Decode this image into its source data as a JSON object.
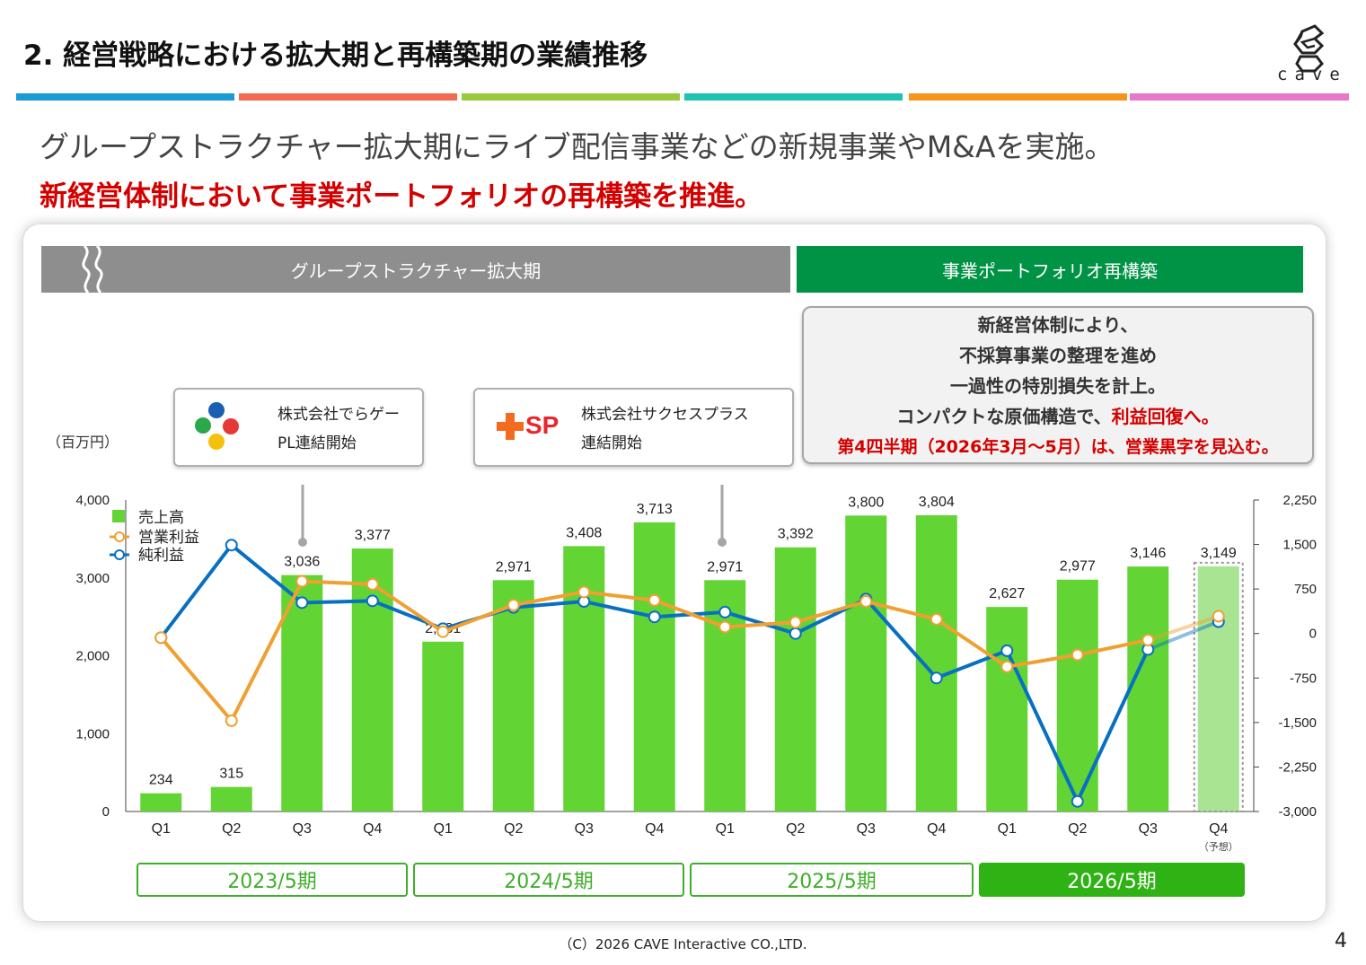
{
  "header": {
    "title": "2.  経営戦略における拡大期と再構築期の業績推移",
    "logo_text": "cave",
    "stripe_colors": [
      "#1a9ad6",
      "#f26b50",
      "#9ac93d",
      "#1fc3b0",
      "#f7941d",
      "#e679c8"
    ]
  },
  "subtitle": "グループストラクチャー拡大期にライブ配信事業などの新規事業やM&Aを実施。",
  "headline": "新経営体制において事業ポートフォリオの再構築を推進。",
  "banners": {
    "expansion": "グループストラクチャー拡大期",
    "rebuild": "事業ポートフォリオ再構築"
  },
  "note": {
    "lines": [
      "新経営体制により、",
      "不採算事業の整理を進め",
      "一過性の特別損失を計上。"
    ],
    "line4_prefix": "コンパクトな原価構造で、",
    "line4_red": "利益回復へ。",
    "line5": "第4四半期（2026年3月〜5月）は、営業黒字を見込む。"
  },
  "callouts": [
    {
      "line1": "株式会社でらゲー",
      "line2": "PL連結開始"
    },
    {
      "line1": "株式会社サクセスプラス",
      "line2": "連結開始",
      "logo_text": "SP"
    }
  ],
  "unit_label": "（百万円）",
  "periods": [
    "2023/5期",
    "2024/5期",
    "2025/5期",
    "2026/5期"
  ],
  "footer": {
    "copyright": "（C）2026 CAVE Interactive CO.,LTD.",
    "page_number": "4"
  },
  "colors": {
    "sales": "#62d535",
    "sales_forecast": "#a8e492",
    "operating_profit": "#f0a030",
    "net_profit": "#0870c2",
    "green_banner": "#009245",
    "red_text": "#d40000"
  },
  "chart_data": {
    "type": "bar",
    "categories": [
      "Q1",
      "Q2",
      "Q3",
      "Q4",
      "Q1",
      "Q2",
      "Q3",
      "Q4",
      "Q1",
      "Q2",
      "Q3",
      "Q4",
      "Q1",
      "Q2",
      "Q3",
      "Q4"
    ],
    "forecast_note": "（予想）",
    "forecast_index": 15,
    "left_axis": {
      "ylim": [
        0,
        4000
      ],
      "ticks": [
        "0",
        "1,000",
        "2,000",
        "3,000",
        "4,000"
      ]
    },
    "right_axis": {
      "ylim": [
        -3000,
        2250
      ],
      "ticks": [
        "2,250",
        "1,500",
        "750",
        "0",
        "-750",
        "-1,500",
        "-2,250",
        "-3,000"
      ]
    },
    "legend": [
      "売上高",
      "営業利益",
      "純利益"
    ],
    "series": [
      {
        "name": "売上高",
        "axis": "left",
        "type": "bar",
        "values": [
          234,
          315,
          3036,
          3377,
          2181,
          2971,
          3408,
          3713,
          2971,
          3392,
          3800,
          3804,
          2627,
          2977,
          3146,
          3149
        ],
        "labels": [
          "234",
          "315",
          "3,036",
          "3,377",
          "2,181",
          "2,971",
          "3,408",
          "3,713",
          "2,971",
          "3,392",
          "3,800",
          "3,804",
          "2,627",
          "2,977",
          "3,146",
          "3,149"
        ]
      },
      {
        "name": "営業利益",
        "axis": "right",
        "type": "line",
        "values": [
          -70,
          -1470,
          880,
          830,
          30,
          480,
          700,
          560,
          110,
          190,
          540,
          240,
          -560,
          -360,
          -110,
          290
        ]
      },
      {
        "name": "純利益",
        "axis": "right",
        "type": "line",
        "values": [
          -70,
          1490,
          520,
          550,
          80,
          440,
          540,
          280,
          360,
          0,
          580,
          -750,
          -290,
          -2830,
          -270,
          200
        ]
      }
    ]
  }
}
